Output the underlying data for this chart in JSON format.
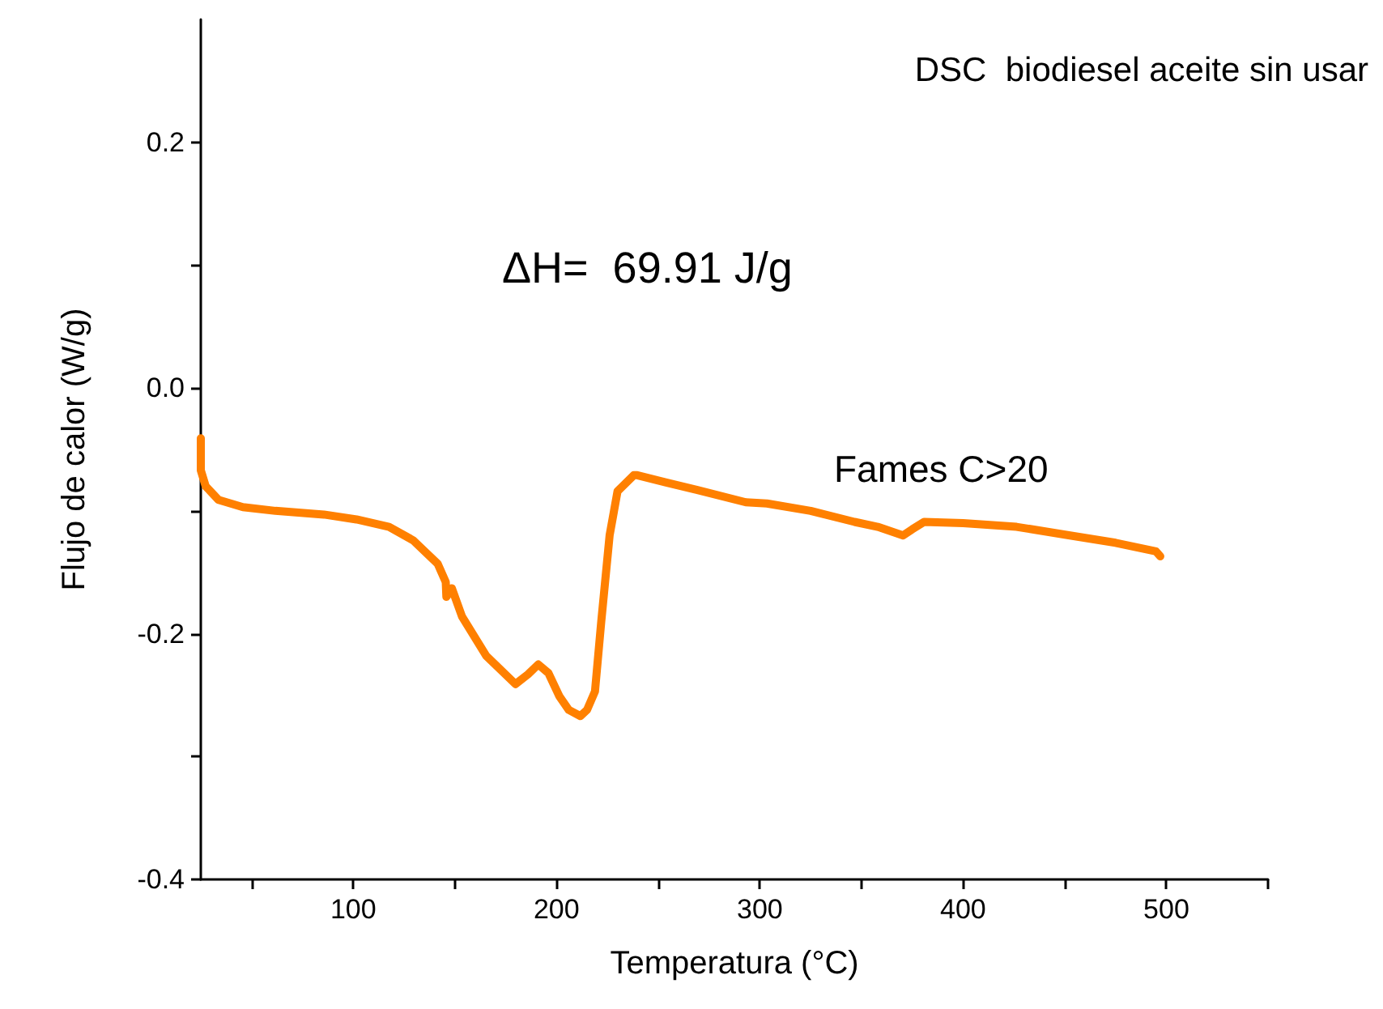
{
  "chart_data": {
    "type": "line",
    "title": "DSC  biodiesel aceite sin usar",
    "xlabel": "Temperatura (°C)",
    "ylabel": "Flujo de calor (W/g)",
    "annotations": [
      "ΔH=  69.91 J/g",
      "Fames C>20"
    ],
    "xlim": [
      25,
      550
    ],
    "ylim": [
      -0.4,
      0.3
    ],
    "xticks": [
      {
        "value": 50,
        "label": null
      },
      100,
      {
        "value": 150,
        "label": null
      },
      200,
      {
        "value": 250,
        "label": null
      },
      300,
      {
        "value": 350,
        "label": null
      },
      400,
      {
        "value": 450,
        "label": null
      },
      500,
      {
        "value": 550,
        "label": null
      }
    ],
    "yticks": [
      -0.4,
      {
        "value": -0.3,
        "label": null
      },
      -0.2,
      {
        "value": -0.1,
        "label": null
      },
      {
        "value": 0,
        "label": "0.0"
      },
      {
        "value": 0.1,
        "label": null
      },
      0.2
    ],
    "grid": false,
    "marker": "none",
    "line_style": "solid",
    "series": [
      {
        "color": "#ff8000",
        "x": [
          25,
          25,
          27.4,
          33.7,
          45.7,
          61.7,
          85.6,
          101.6,
          117.6,
          129.5,
          141.5,
          145.5,
          145.8,
          148.5,
          153.5,
          165.4,
          179.8,
          186,
          191,
          196,
          201.4,
          206,
          211.7,
          215,
          218.9,
          222,
          226.1,
          230,
          238,
          239.7,
          254,
          269.3,
          293.1,
          303.5,
          325,
          346.6,
          358,
          370.5,
          375,
          380.8,
          400,
          426.3,
          452.6,
          475,
          494.9,
          497
        ],
        "values": [
          -0.041,
          -0.067,
          -0.08,
          -0.091,
          -0.097,
          -0.1,
          -0.103,
          -0.107,
          -0.113,
          -0.124,
          -0.143,
          -0.158,
          -0.17,
          -0.163,
          -0.186,
          -0.218,
          -0.241,
          -0.233,
          -0.225,
          -0.232,
          -0.251,
          -0.262,
          -0.267,
          -0.262,
          -0.247,
          -0.19,
          -0.12,
          -0.084,
          -0.071,
          -0.071,
          -0.077,
          -0.083,
          -0.093,
          -0.094,
          -0.1,
          -0.109,
          -0.113,
          -0.12,
          -0.115,
          -0.109,
          -0.11,
          -0.113,
          -0.12,
          -0.126,
          -0.133,
          -0.137
        ]
      }
    ]
  }
}
